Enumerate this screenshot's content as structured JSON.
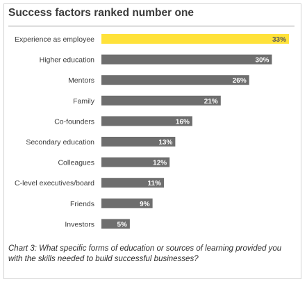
{
  "title": "Success factors ranked number one",
  "caption": "Chart 3: What specific forms of education or sources of learning provided you with the skills needed to build successful businesses?",
  "chart_data": {
    "type": "bar",
    "orientation": "horizontal",
    "title": "Success factors ranked number one",
    "categories": [
      "Experience as employee",
      "Higher education",
      "Mentors",
      "Family",
      "Co-founders",
      "Secondary education",
      "Colleagues",
      "C-level executives/board",
      "Friends",
      "Investors"
    ],
    "values": [
      33,
      30,
      26,
      21,
      16,
      13,
      12,
      11,
      9,
      5
    ],
    "value_labels": [
      "33%",
      "30%",
      "26%",
      "21%",
      "16%",
      "13%",
      "12%",
      "11%",
      "9%",
      "5%"
    ],
    "unit": "%",
    "xlim": [
      0,
      33
    ],
    "grid": false,
    "legend": "none",
    "highlight_color": "#ffe23a",
    "bar_color": "#6e6e6e",
    "highlight_index": 0
  }
}
